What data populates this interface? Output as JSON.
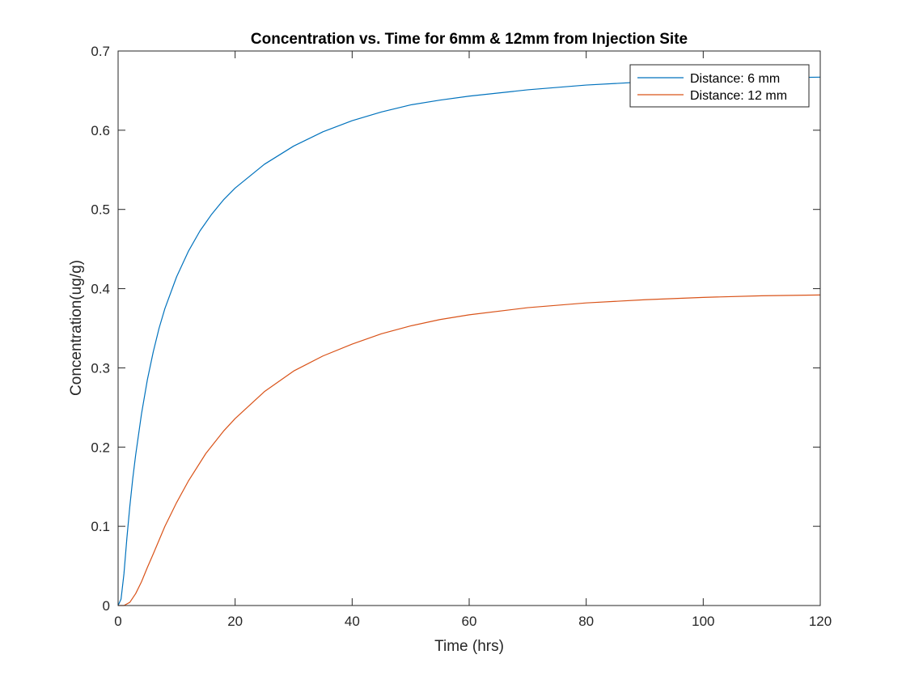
{
  "chart_data": {
    "type": "line",
    "title": "Concentration vs. Time for 6mm & 12mm from Injection Site",
    "xlabel": "Time (hrs)",
    "ylabel": "Concentration(ug/g)",
    "xlim": [
      0,
      120
    ],
    "ylim": [
      0,
      0.7
    ],
    "xticks": [
      "0",
      "20",
      "40",
      "60",
      "80",
      "100",
      "120"
    ],
    "yticks": [
      "0",
      "0.1",
      "0.2",
      "0.3",
      "0.4",
      "0.5",
      "0.6",
      "0.7"
    ],
    "grid": false,
    "legend_position": "top-right",
    "series": [
      {
        "name": "Distance: 6 mm",
        "color": "#0072BD",
        "x": [
          0,
          0.5,
          1,
          1.5,
          2,
          2.5,
          3,
          4,
          5,
          6,
          7,
          8,
          10,
          12,
          14,
          16,
          18,
          20,
          25,
          30,
          35,
          40,
          45,
          50,
          55,
          60,
          70,
          80,
          90,
          100,
          110,
          120
        ],
        "y": [
          0,
          0.008,
          0.04,
          0.085,
          0.125,
          0.16,
          0.19,
          0.242,
          0.285,
          0.32,
          0.35,
          0.375,
          0.415,
          0.447,
          0.473,
          0.494,
          0.512,
          0.527,
          0.557,
          0.58,
          0.598,
          0.612,
          0.623,
          0.632,
          0.638,
          0.643,
          0.651,
          0.657,
          0.661,
          0.664,
          0.666,
          0.667
        ]
      },
      {
        "name": "Distance: 12 mm",
        "color": "#D95319",
        "x": [
          0,
          1,
          2,
          3,
          4,
          5,
          6,
          8,
          10,
          12,
          15,
          18,
          20,
          25,
          30,
          35,
          40,
          45,
          50,
          55,
          60,
          70,
          80,
          90,
          100,
          110,
          120
        ],
        "y": [
          0,
          0,
          0.004,
          0.015,
          0.03,
          0.048,
          0.065,
          0.1,
          0.13,
          0.157,
          0.192,
          0.22,
          0.236,
          0.27,
          0.296,
          0.315,
          0.33,
          0.343,
          0.353,
          0.361,
          0.367,
          0.376,
          0.382,
          0.386,
          0.389,
          0.391,
          0.392
        ]
      }
    ]
  }
}
